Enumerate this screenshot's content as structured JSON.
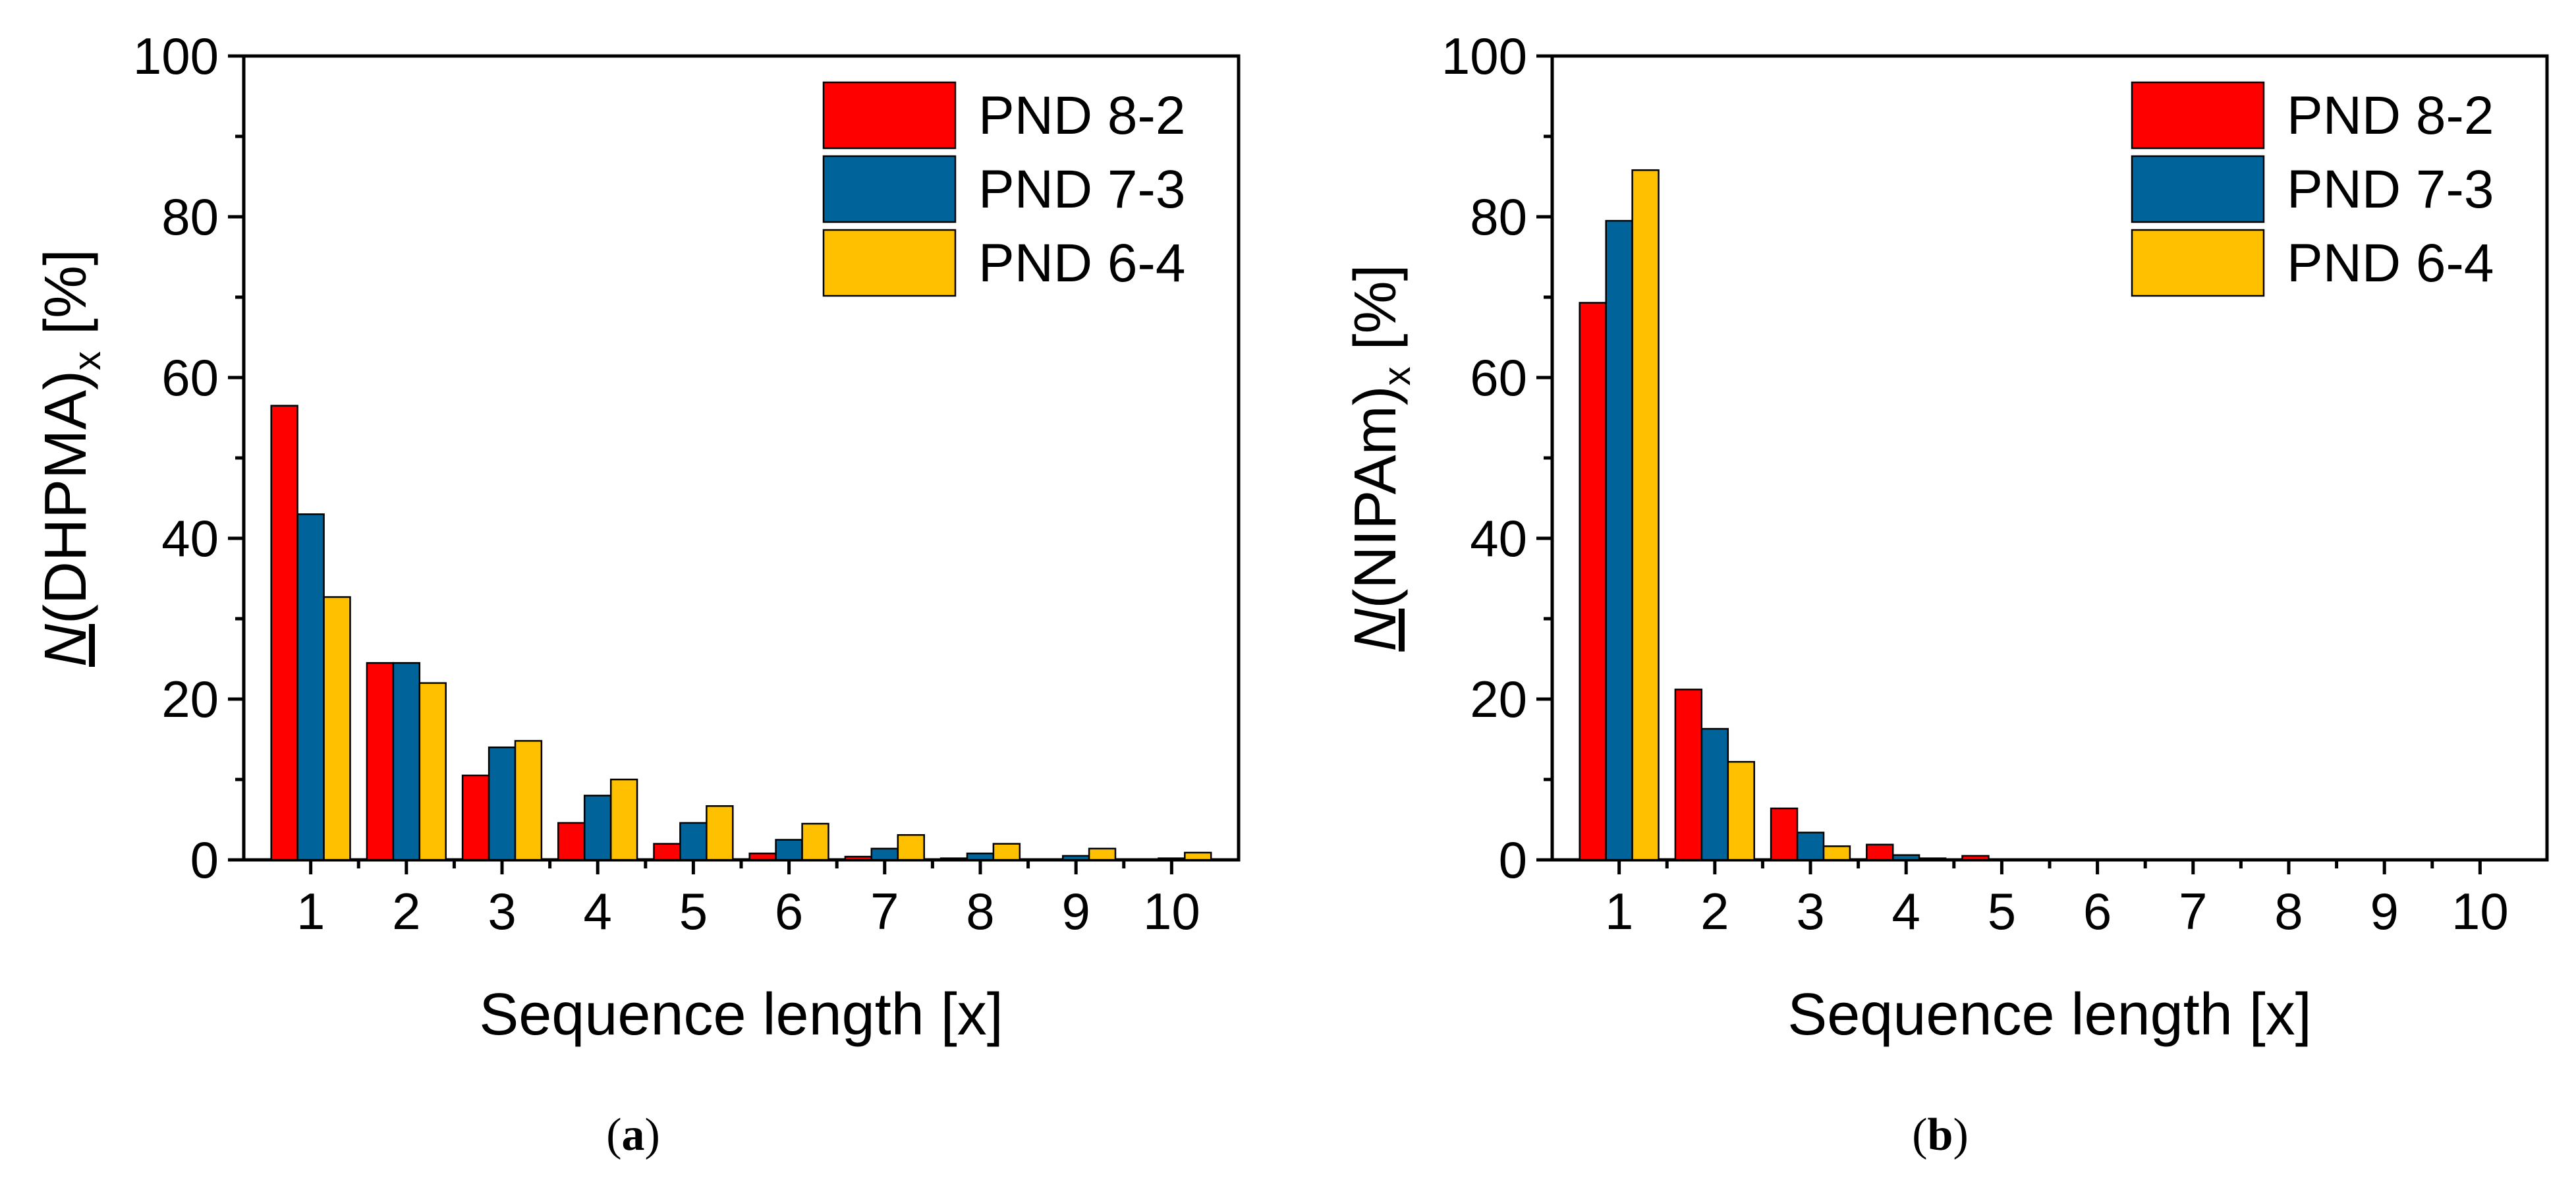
{
  "chart_data": [
    {
      "type": "bar",
      "panel_label": "a",
      "categories": [
        "1",
        "2",
        "3",
        "4",
        "5",
        "6",
        "7",
        "8",
        "9",
        "10"
      ],
      "series": [
        {
          "name": "PND 8-2",
          "color": "#ff0000",
          "values": [
            56.5,
            24.5,
            10.5,
            4.6,
            2.0,
            0.8,
            0.4,
            0.2,
            0.1,
            0.05
          ]
        },
        {
          "name": "PND 7-3",
          "color": "#00649b",
          "values": [
            43.0,
            24.5,
            14.0,
            8.0,
            4.6,
            2.5,
            1.4,
            0.8,
            0.5,
            0.2
          ]
        },
        {
          "name": "PND 6-4",
          "color": "#ffc000",
          "values": [
            32.7,
            22.0,
            14.8,
            10.0,
            6.7,
            4.5,
            3.1,
            2.0,
            1.4,
            0.9
          ]
        }
      ],
      "title": "",
      "xlabel": "Sequence length [x]",
      "ylabel": {
        "italic": "N",
        "main": "(DHPMA)",
        "sub": "x",
        "unit": " [%]"
      },
      "ylim": [
        0,
        100
      ],
      "yticks": [
        "0",
        "20",
        "40",
        "60",
        "80",
        "100"
      ],
      "legend_position": "top-right",
      "grid": false
    },
    {
      "type": "bar",
      "panel_label": "b",
      "categories": [
        "1",
        "2",
        "3",
        "4",
        "5",
        "6",
        "7",
        "8",
        "9",
        "10"
      ],
      "series": [
        {
          "name": "PND 8-2",
          "color": "#ff0000",
          "values": [
            69.3,
            21.2,
            6.4,
            1.9,
            0.5,
            0.1,
            0.05,
            0,
            0,
            0
          ]
        },
        {
          "name": "PND 7-3",
          "color": "#00649b",
          "values": [
            79.5,
            16.3,
            3.4,
            0.6,
            0.1,
            0.05,
            0,
            0,
            0,
            0
          ]
        },
        {
          "name": "PND 6-4",
          "color": "#ffc000",
          "values": [
            85.8,
            12.2,
            1.7,
            0.2,
            0.05,
            0,
            0,
            0,
            0,
            0
          ]
        }
      ],
      "title": "",
      "xlabel": "Sequence length [x]",
      "ylabel": {
        "italic": "N",
        "main": "(NIPAm)",
        "sub": "x",
        "unit": " [%]"
      },
      "ylim": [
        0,
        100
      ],
      "yticks": [
        "0",
        "20",
        "40",
        "60",
        "80",
        "100"
      ],
      "legend_position": "top-right",
      "grid": false
    }
  ]
}
